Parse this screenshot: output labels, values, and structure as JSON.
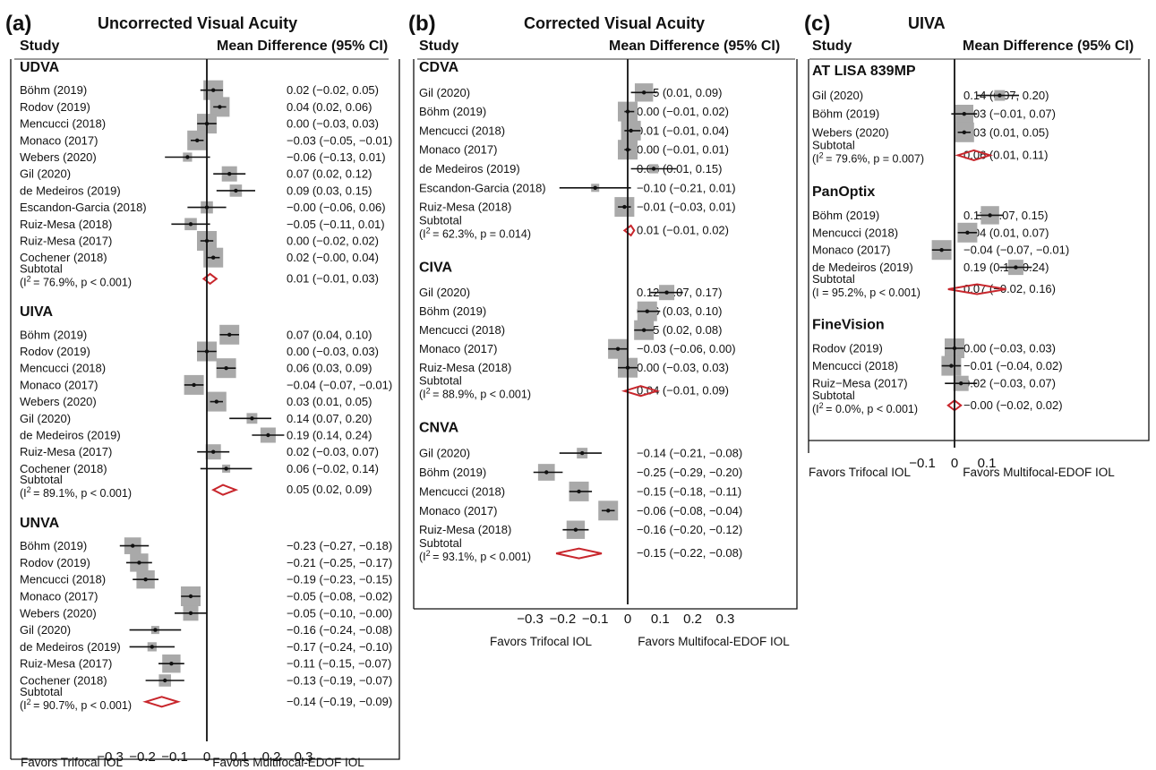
{
  "chart_data": [
    {
      "type": "forest",
      "panel_label": "(a)",
      "title": "Uncorrected Visual Acuity",
      "study_header": "Study",
      "effect_header": "Mean Difference (95% CI)",
      "xticks": [
        -0.3,
        -0.2,
        -0.1,
        0,
        0.1,
        0.2,
        0.3
      ],
      "xtick_labels": [
        "−0.3",
        "−0.2",
        "−0.1",
        "0",
        "0.1",
        "0.2",
        "0.3"
      ],
      "xlim": [
        -0.3,
        0.3
      ],
      "left_label": "Favors Trifocal IOL",
      "right_label": "Favors Multifocal-EDOF IOL",
      "groups": [
        {
          "name": "UDVA",
          "studies": [
            {
              "study": "Böhm (2019)",
              "md": 0.02,
              "lo": -0.02,
              "hi": 0.05,
              "ci": "0.02 (−0.02, 0.05)"
            },
            {
              "study": "Rodov (2019)",
              "md": 0.04,
              "lo": 0.02,
              "hi": 0.06,
              "ci": "0.04 (0.02, 0.06)"
            },
            {
              "study": "Mencucci (2018)",
              "md": 0.0,
              "lo": -0.03,
              "hi": 0.03,
              "ci": "0.00 (−0.03, 0.03)"
            },
            {
              "study": "Monaco (2017)",
              "md": -0.03,
              "lo": -0.05,
              "hi": -0.01,
              "ci": "−0.03 (−0.05, −0.01)"
            },
            {
              "study": "Webers (2020)",
              "md": -0.06,
              "lo": -0.13,
              "hi": 0.01,
              "ci": "−0.06 (−0.13, 0.01)"
            },
            {
              "study": "Gil (2020)",
              "md": 0.07,
              "lo": 0.02,
              "hi": 0.12,
              "ci": "0.07 (0.02, 0.12)"
            },
            {
              "study": "de Medeiros (2019)",
              "md": 0.09,
              "lo": 0.03,
              "hi": 0.15,
              "ci": "0.09 (0.03, 0.15)"
            },
            {
              "study": "Escandon-Garcia (2018)",
              "md": -0.0,
              "lo": -0.06,
              "hi": 0.06,
              "ci": "−0.00 (−0.06, 0.06)"
            },
            {
              "study": "Ruiz-Mesa (2018)",
              "md": -0.05,
              "lo": -0.11,
              "hi": 0.01,
              "ci": "−0.05 (−0.11, 0.01)"
            },
            {
              "study": "Ruiz-Mesa (2017)",
              "md": 0.0,
              "lo": -0.02,
              "hi": 0.02,
              "ci": "0.00 (−0.02, 0.02)"
            },
            {
              "study": "Cochener (2018)",
              "md": 0.02,
              "lo": -0.0,
              "hi": 0.04,
              "ci": "0.02 (−0.00, 0.04)"
            }
          ],
          "subtotal": {
            "label": "Subtotal",
            "i2": "76.9%",
            "p": "p < 0.001",
            "md": 0.01,
            "lo": -0.01,
            "hi": 0.03,
            "ci": "0.01 (−0.01, 0.03)"
          }
        },
        {
          "name": "UIVA",
          "studies": [
            {
              "study": "Böhm (2019)",
              "md": 0.07,
              "lo": 0.04,
              "hi": 0.1,
              "ci": "0.07 (0.04, 0.10)"
            },
            {
              "study": "Rodov (2019)",
              "md": 0.0,
              "lo": -0.03,
              "hi": 0.03,
              "ci": "0.00 (−0.03, 0.03)"
            },
            {
              "study": "Mencucci (2018)",
              "md": 0.06,
              "lo": 0.03,
              "hi": 0.09,
              "ci": "0.06 (0.03, 0.09)"
            },
            {
              "study": "Monaco (2017)",
              "md": -0.04,
              "lo": -0.07,
              "hi": -0.01,
              "ci": "−0.04 (−0.07, −0.01)"
            },
            {
              "study": "Webers (2020)",
              "md": 0.03,
              "lo": 0.01,
              "hi": 0.05,
              "ci": "0.03 (0.01, 0.05)"
            },
            {
              "study": "Gil (2020)",
              "md": 0.14,
              "lo": 0.07,
              "hi": 0.2,
              "ci": "0.14 (0.07, 0.20)"
            },
            {
              "study": "de Medeiros (2019)",
              "md": 0.19,
              "lo": 0.14,
              "hi": 0.24,
              "ci": "0.19 (0.14, 0.24)"
            },
            {
              "study": "Ruiz-Mesa (2017)",
              "md": 0.02,
              "lo": -0.03,
              "hi": 0.07,
              "ci": "0.02 (−0.03, 0.07)"
            },
            {
              "study": "Cochener (2018)",
              "md": 0.06,
              "lo": -0.02,
              "hi": 0.14,
              "ci": "0.06 (−0.02, 0.14)"
            }
          ],
          "subtotal": {
            "label": "Subtotal",
            "i2": "89.1%",
            "p": "p < 0.001",
            "md": 0.05,
            "lo": 0.02,
            "hi": 0.09,
            "ci": "0.05 (0.02, 0.09)"
          }
        },
        {
          "name": "UNVA",
          "studies": [
            {
              "study": "Böhm (2019)",
              "md": -0.23,
              "lo": -0.27,
              "hi": -0.18,
              "ci": "−0.23 (−0.27, −0.18)"
            },
            {
              "study": "Rodov (2019)",
              "md": -0.21,
              "lo": -0.25,
              "hi": -0.17,
              "ci": "−0.21 (−0.25, −0.17)"
            },
            {
              "study": "Mencucci (2018)",
              "md": -0.19,
              "lo": -0.23,
              "hi": -0.15,
              "ci": "−0.19 (−0.23, −0.15)"
            },
            {
              "study": "Monaco (2017)",
              "md": -0.05,
              "lo": -0.08,
              "hi": -0.02,
              "ci": "−0.05 (−0.08, −0.02)"
            },
            {
              "study": "Webers (2020)",
              "md": -0.05,
              "lo": -0.1,
              "hi": -0.0,
              "ci": "−0.05 (−0.10, −0.00)"
            },
            {
              "study": "Gil (2020)",
              "md": -0.16,
              "lo": -0.24,
              "hi": -0.08,
              "ci": "−0.16 (−0.24, −0.08)"
            },
            {
              "study": "de Medeiros (2019)",
              "md": -0.17,
              "lo": -0.24,
              "hi": -0.1,
              "ci": "−0.17 (−0.24, −0.10)"
            },
            {
              "study": "Ruiz-Mesa (2017)",
              "md": -0.11,
              "lo": -0.15,
              "hi": -0.07,
              "ci": "−0.11 (−0.15, −0.07)"
            },
            {
              "study": "Cochener (2018)",
              "md": -0.13,
              "lo": -0.19,
              "hi": -0.07,
              "ci": "−0.13 (−0.19, −0.07)"
            }
          ],
          "subtotal": {
            "label": "Subtotal",
            "i2": "90.7%",
            "p": "p < 0.001",
            "md": -0.14,
            "lo": -0.19,
            "hi": -0.09,
            "ci": "−0.14 (−0.19, −0.09)"
          }
        }
      ]
    },
    {
      "type": "forest",
      "panel_label": "(b)",
      "title": "Corrected Visual Acuity",
      "study_header": "Study",
      "effect_header": "Mean Difference (95% CI)",
      "xticks": [
        -0.3,
        -0.2,
        -0.1,
        0,
        0.1,
        0.2,
        0.3
      ],
      "xtick_labels": [
        "−0.3",
        "−0.2",
        "−0.1",
        "0",
        "0.1",
        "0.2",
        "0.3"
      ],
      "xlim": [
        -0.3,
        0.3
      ],
      "left_label": "Favors Trifocal IOL",
      "right_label": "Favors Multifocal-EDOF IOL",
      "groups": [
        {
          "name": "CDVA",
          "studies": [
            {
              "study": "Gil (2020)",
              "md": 0.05,
              "lo": 0.01,
              "hi": 0.09,
              "ci": "0.05 (0.01, 0.09)"
            },
            {
              "study": "Böhm (2019)",
              "md": 0.0,
              "lo": -0.01,
              "hi": 0.02,
              "ci": "0.00 (−0.01, 0.02)"
            },
            {
              "study": "Mencucci (2018)",
              "md": 0.01,
              "lo": -0.01,
              "hi": 0.04,
              "ci": "0.01 (−0.01, 0.04)"
            },
            {
              "study": "Monaco (2017)",
              "md": 0.0,
              "lo": -0.01,
              "hi": 0.01,
              "ci": "0.00 (−0.01, 0.01)"
            },
            {
              "study": "de Medeiros (2019)",
              "md": 0.08,
              "lo": 0.01,
              "hi": 0.15,
              "ci": "0.08 (0.01, 0.15)"
            },
            {
              "study": "Escandon-Garcia (2018)",
              "md": -0.1,
              "lo": -0.21,
              "hi": 0.01,
              "ci": "−0.10 (−0.21, 0.01)"
            },
            {
              "study": "Ruiz-Mesa (2018)",
              "md": -0.01,
              "lo": -0.03,
              "hi": 0.01,
              "ci": "−0.01 (−0.03, 0.01)"
            }
          ],
          "subtotal": {
            "label": "Subtotal",
            "i2": "62.3%",
            "p": "p = 0.014",
            "md": 0.01,
            "lo": -0.01,
            "hi": 0.02,
            "ci": "0.01 (−0.01, 0.02)"
          }
        },
        {
          "name": "CIVA",
          "studies": [
            {
              "study": "Gil (2020)",
              "md": 0.12,
              "lo": 0.07,
              "hi": 0.17,
              "ci": "0.12 (0.07, 0.17)"
            },
            {
              "study": "Böhm (2019)",
              "md": 0.06,
              "lo": 0.03,
              "hi": 0.1,
              "ci": "0.06 (0.03, 0.10)"
            },
            {
              "study": "Mencucci (2018)",
              "md": 0.05,
              "lo": 0.02,
              "hi": 0.08,
              "ci": "0.05 (0.02, 0.08)"
            },
            {
              "study": "Monaco (2017)",
              "md": -0.03,
              "lo": -0.06,
              "hi": 0.0,
              "ci": "−0.03 (−0.06, 0.00)"
            },
            {
              "study": "Ruiz-Mesa (2018)",
              "md": 0.0,
              "lo": -0.03,
              "hi": 0.03,
              "ci": "0.00 (−0.03, 0.03)"
            }
          ],
          "subtotal": {
            "label": "Subtotal",
            "i2": "88.9%",
            "p": "p < 0.001",
            "md": 0.04,
            "lo": -0.01,
            "hi": 0.09,
            "ci": "0.04 (−0.01, 0.09)"
          }
        },
        {
          "name": "CNVA",
          "studies": [
            {
              "study": "Gil (2020)",
              "md": -0.14,
              "lo": -0.21,
              "hi": -0.08,
              "ci": "−0.14 (−0.21, −0.08)"
            },
            {
              "study": "Böhm (2019)",
              "md": -0.25,
              "lo": -0.29,
              "hi": -0.2,
              "ci": "−0.25 (−0.29, −0.20)"
            },
            {
              "study": "Mencucci (2018)",
              "md": -0.15,
              "lo": -0.18,
              "hi": -0.11,
              "ci": "−0.15 (−0.18, −0.11)"
            },
            {
              "study": "Monaco (2017)",
              "md": -0.06,
              "lo": -0.08,
              "hi": -0.04,
              "ci": "−0.06 (−0.08, −0.04)"
            },
            {
              "study": "Ruiz-Mesa (2018)",
              "md": -0.16,
              "lo": -0.2,
              "hi": -0.12,
              "ci": "−0.16 (−0.20, −0.12)"
            }
          ],
          "subtotal": {
            "label": "Subtotal",
            "i2": "93.1%",
            "p": "p < 0.001",
            "md": -0.15,
            "lo": -0.22,
            "hi": -0.08,
            "ci": "−0.15 (−0.22, −0.08)"
          }
        }
      ]
    },
    {
      "type": "forest",
      "panel_label": "(c)",
      "title": "UIVA",
      "study_header": "Study",
      "effect_header": "Mean Difference (95% CI)",
      "xticks": [
        -0.1,
        0,
        0.1
      ],
      "xtick_labels": [
        "−0.1",
        "0",
        "0.1"
      ],
      "xlim": [
        -0.1,
        0.1
      ],
      "left_label": "Favors Trifocal IOL",
      "right_label": "Favors Multifocal-EDOF IOL",
      "groups": [
        {
          "name": "AT LISA 839MP",
          "studies": [
            {
              "study": "Gil (2020)",
              "md": 0.14,
              "lo": 0.07,
              "hi": 0.2,
              "ci": "0.14 (0.07, 0.20)"
            },
            {
              "study": "Böhm (2019)",
              "md": 0.03,
              "lo": -0.01,
              "hi": 0.07,
              "ci": "0.03 (−0.01, 0.07)"
            },
            {
              "study": "Webers (2020)",
              "md": 0.03,
              "lo": 0.01,
              "hi": 0.05,
              "ci": "0.03 (0.01, 0.05)"
            }
          ],
          "subtotal": {
            "label": "Subtotal",
            "i2": "79.6%",
            "p": "p = 0.007",
            "md": 0.06,
            "lo": 0.01,
            "hi": 0.11,
            "ci": "0.06 (0.01, 0.11)"
          }
        },
        {
          "name": "PanOptix",
          "studies": [
            {
              "study": "Böhm (2019)",
              "md": 0.11,
              "lo": 0.07,
              "hi": 0.15,
              "ci": "0.11 (0.07, 0.15)"
            },
            {
              "study": "Mencucci (2018)",
              "md": 0.04,
              "lo": 0.01,
              "hi": 0.07,
              "ci": "0.04 (0.01, 0.07)"
            },
            {
              "study": "Monaco (2017)",
              "md": -0.04,
              "lo": -0.07,
              "hi": -0.01,
              "ci": "−0.04 (−0.07, −0.01)"
            },
            {
              "study": "de Medeiros (2019)",
              "md": 0.19,
              "lo": 0.14,
              "hi": 0.24,
              "ci": "0.19 (0.14, 0.24)"
            }
          ],
          "subtotal": {
            "label": "Subtotal",
            "i2": "95.2%",
            "p": "p < 0.001",
            "md": 0.07,
            "lo": -0.02,
            "hi": 0.16,
            "ci": "0.07 (−0.02, 0.16)",
            "i_symbol": "I"
          }
        },
        {
          "name": "FineVision",
          "studies": [
            {
              "study": "Rodov (2019)",
              "md": 0.0,
              "lo": -0.03,
              "hi": 0.03,
              "ci": "0.00 (−0.03, 0.03)"
            },
            {
              "study": "Mencucci (2018)",
              "md": -0.01,
              "lo": -0.04,
              "hi": 0.02,
              "ci": "−0.01 (−0.04, 0.02)"
            },
            {
              "study": "Ruiz−Mesa (2017)",
              "md": 0.02,
              "lo": -0.03,
              "hi": 0.07,
              "ci": "0.02 (−0.03, 0.07)"
            }
          ],
          "subtotal": {
            "label": "Subtotal",
            "i2": "0.0%",
            "p": "p < 0.001",
            "md": -0.0,
            "lo": -0.02,
            "hi": 0.02,
            "ci": "−0.00 (−0.02, 0.02)"
          }
        }
      ]
    }
  ],
  "colors": {
    "box": "#a9a9a9",
    "diamond": "#c8262c",
    "line": "#111111",
    "rule": "#999999"
  }
}
